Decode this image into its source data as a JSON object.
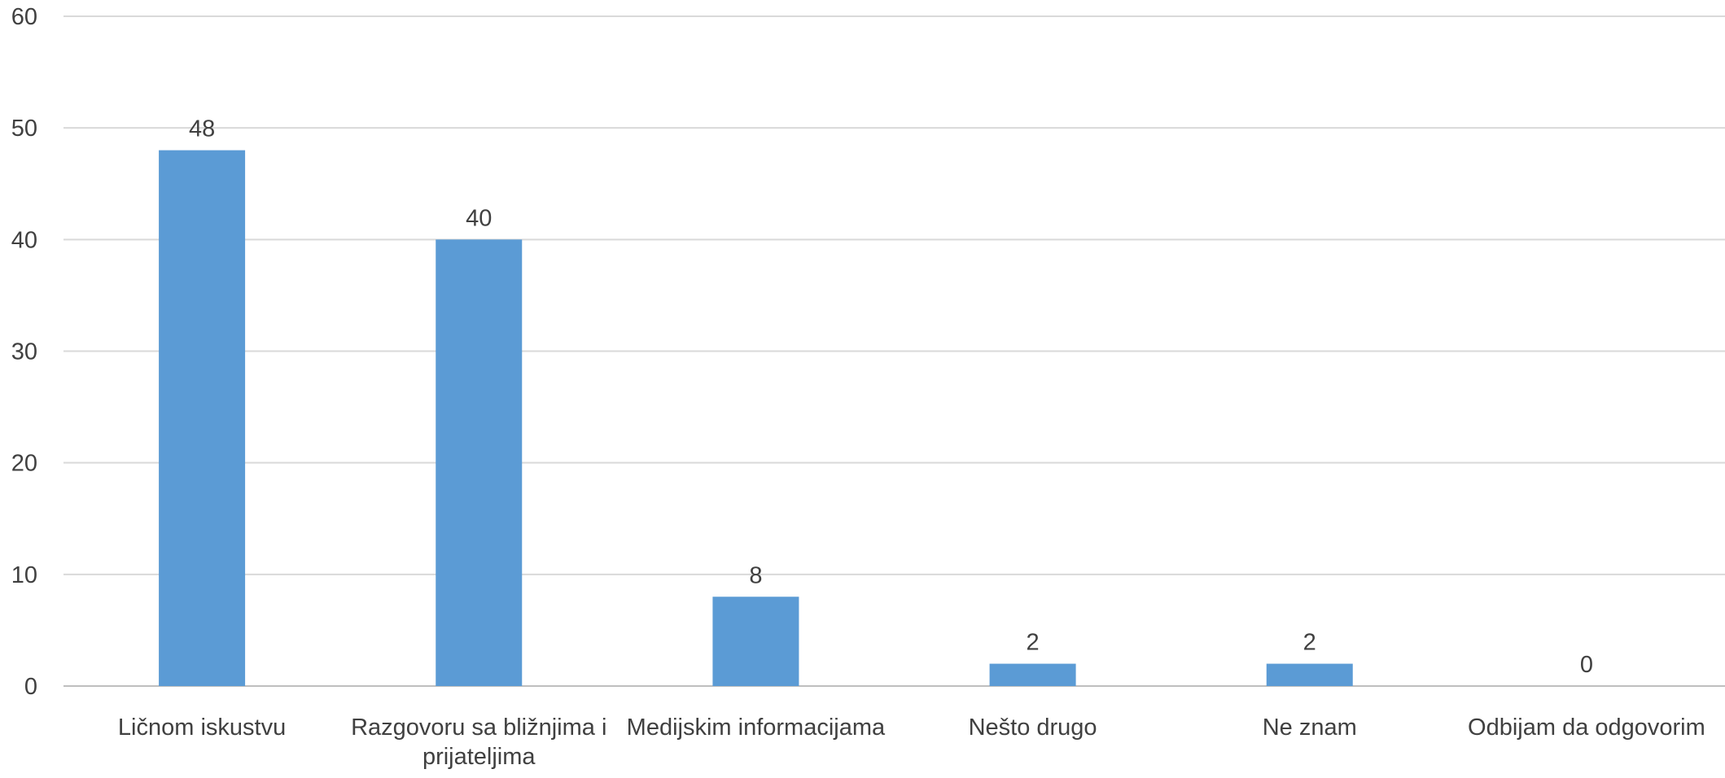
{
  "chart_data": {
    "type": "bar",
    "title": "",
    "xlabel": "",
    "ylabel": "",
    "categories": [
      [
        "Ličnom iskustvu"
      ],
      [
        "Razgovoru sa bližnjima i",
        "prijateljima"
      ],
      [
        "Medijskim informacijama"
      ],
      [
        "Nešto drugo"
      ],
      [
        "Ne znam"
      ],
      [
        "Odbijam da odgovorim"
      ]
    ],
    "values": [
      48,
      40,
      8,
      2,
      2,
      0
    ],
    "data_labels": [
      "48",
      "40",
      "8",
      "2",
      "2",
      "0"
    ],
    "ylim": [
      0,
      60
    ],
    "yticks": [
      0,
      10,
      20,
      30,
      40,
      50,
      60
    ],
    "ytick_labels": [
      "0",
      "10",
      "20",
      "30",
      "40",
      "50",
      "60"
    ],
    "grid": true,
    "legend": "none",
    "colors": {
      "bar": "#5b9bd5",
      "grid": "#d9d9d9",
      "text": "#404040"
    }
  }
}
